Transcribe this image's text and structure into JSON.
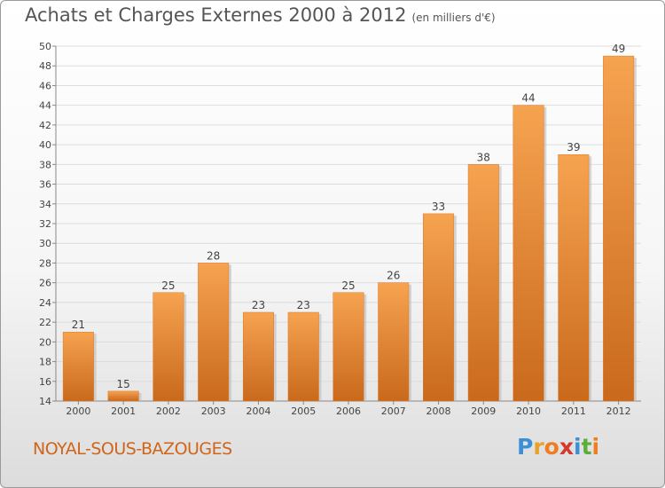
{
  "chart_data": {
    "type": "bar",
    "title": "Achats et Charges Externes 2000 à 2012",
    "subtitle": "(en milliers d'€)",
    "categories": [
      "2000",
      "2001",
      "2002",
      "2003",
      "2004",
      "2005",
      "2006",
      "2007",
      "2008",
      "2009",
      "2010",
      "2011",
      "2012"
    ],
    "values": [
      21,
      15,
      25,
      28,
      23,
      23,
      25,
      26,
      33,
      38,
      44,
      39,
      49
    ],
    "ylim": [
      14,
      50
    ],
    "yticks": [
      14,
      16,
      18,
      20,
      22,
      24,
      26,
      28,
      30,
      32,
      34,
      36,
      38,
      40,
      42,
      44,
      46,
      48,
      50
    ],
    "grid": true,
    "bar_color": "#e8893a"
  },
  "location": "NOYAL-SOUS-BAZOUGES",
  "brand": {
    "name": "Proxiti",
    "letters": [
      "P",
      "r",
      "o",
      "x",
      "i",
      "t",
      "i"
    ],
    "colors": [
      "#3a8fd6",
      "#e8a22b",
      "#f07d20",
      "#d33a2c",
      "#3a8fd6",
      "#5cae3a",
      "#f07d20"
    ]
  }
}
